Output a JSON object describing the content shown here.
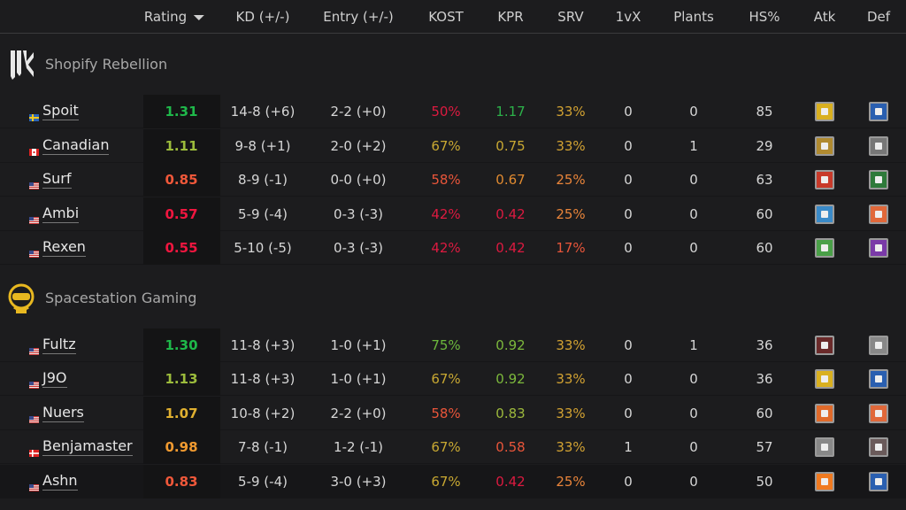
{
  "header": {
    "columns": [
      {
        "key": "rating",
        "label": "Rating",
        "sorted": "desc"
      },
      {
        "key": "kd",
        "label": "KD (+/-)"
      },
      {
        "key": "entry",
        "label": "Entry (+/-)"
      },
      {
        "key": "kost",
        "label": "KOST"
      },
      {
        "key": "kpr",
        "label": "KPR"
      },
      {
        "key": "srv",
        "label": "SRV"
      },
      {
        "key": "onevx",
        "label": "1vX"
      },
      {
        "key": "plants",
        "label": "Plants"
      },
      {
        "key": "hs",
        "label": "HS%"
      },
      {
        "key": "atk",
        "label": "Atk"
      },
      {
        "key": "def",
        "label": "Def"
      }
    ]
  },
  "teams": [
    {
      "name": "Shopify Rebellion",
      "logo": "shopify-rebellion-logo",
      "players": [
        {
          "flag": "sweden",
          "name": "Spoit",
          "rating": "1.31",
          "rc": "#1fb84a",
          "kd": "14-8 (+6)",
          "entry": "2-2 (+0)",
          "kost": "50%",
          "kc": "#dc1a40",
          "kpr": "1.17",
          "pc": "#2cb24a",
          "srv": "33%",
          "sc": "#d2a232",
          "onevx": "0",
          "plants": "0",
          "hs": "85",
          "atk": "#d9b020",
          "def": "#2a5fb0"
        },
        {
          "flag": "canada",
          "name": "Canadian",
          "rating": "1.11",
          "rc": "#9cbc3c",
          "kd": "9-8 (+1)",
          "entry": "2-0 (+2)",
          "kost": "67%",
          "kc": "#c8a832",
          "kpr": "0.75",
          "pc": "#c8a832",
          "srv": "33%",
          "sc": "#d2a232",
          "onevx": "0",
          "plants": "1",
          "hs": "29",
          "atk": "#b08a30",
          "def": "#777777"
        },
        {
          "flag": "usa",
          "name": "Surf",
          "rating": "0.85",
          "rc": "#f0583a",
          "kd": "8-9 (-1)",
          "entry": "0-0 (+0)",
          "kost": "58%",
          "kc": "#e8553a",
          "kpr": "0.67",
          "pc": "#e08a30",
          "srv": "25%",
          "sc": "#e8843a",
          "onevx": "0",
          "plants": "0",
          "hs": "63",
          "atk": "#c83a2a",
          "def": "#2e7a3a"
        },
        {
          "flag": "usa",
          "name": "Ambi",
          "rating": "0.57",
          "rc": "#f0163f",
          "kd": "5-9 (-4)",
          "entry": "0-3 (-3)",
          "kost": "42%",
          "kc": "#dc1a40",
          "kpr": "0.42",
          "pc": "#dc1a40",
          "srv": "25%",
          "sc": "#e8843a",
          "onevx": "0",
          "plants": "0",
          "hs": "60",
          "atk": "#3a8ac8",
          "def": "#e0683a"
        },
        {
          "flag": "usa",
          "name": "Rexen",
          "rating": "0.55",
          "rc": "#f0163f",
          "kd": "5-10 (-5)",
          "entry": "0-3 (-3)",
          "kost": "42%",
          "kc": "#dc1a40",
          "kpr": "0.42",
          "pc": "#dc1a40",
          "srv": "17%",
          "sc": "#e8553a",
          "onevx": "0",
          "plants": "0",
          "hs": "60",
          "atk": "#4aa048",
          "def": "#7a3aa8"
        }
      ]
    },
    {
      "name": "Spacestation Gaming",
      "logo": "spacestation-gaming-logo",
      "players": [
        {
          "flag": "usa",
          "name": "Fultz",
          "rating": "1.30",
          "rc": "#1fb84a",
          "kd": "11-8 (+3)",
          "entry": "1-0 (+1)",
          "kost": "75%",
          "kc": "#6cb83c",
          "kpr": "0.92",
          "pc": "#7cb83c",
          "srv": "33%",
          "sc": "#d2a232",
          "onevx": "0",
          "plants": "1",
          "hs": "36",
          "atk": "#6a2a2a",
          "def": "#888888"
        },
        {
          "flag": "usa",
          "name": "J9O",
          "rating": "1.13",
          "rc": "#9cbc3c",
          "kd": "11-8 (+3)",
          "entry": "1-0 (+1)",
          "kost": "67%",
          "kc": "#c8a832",
          "kpr": "0.92",
          "pc": "#7cb83c",
          "srv": "33%",
          "sc": "#d2a232",
          "onevx": "0",
          "plants": "0",
          "hs": "36",
          "atk": "#d9b020",
          "def": "#2a5fb0"
        },
        {
          "flag": "usa",
          "name": "Nuers",
          "rating": "1.07",
          "rc": "#e0b030",
          "kd": "10-8 (+2)",
          "entry": "2-2 (+0)",
          "kost": "58%",
          "kc": "#e8553a",
          "kpr": "0.83",
          "pc": "#9cb83c",
          "srv": "33%",
          "sc": "#d2a232",
          "onevx": "0",
          "plants": "0",
          "hs": "60",
          "atk": "#e06a2a",
          "def": "#e0683a"
        },
        {
          "flag": "denmark",
          "name": "Benjamaster",
          "rating": "0.98",
          "rc": "#f09a30",
          "kd": "7-8 (-1)",
          "entry": "1-2 (-1)",
          "kost": "67%",
          "kc": "#c8a832",
          "kpr": "0.58",
          "pc": "#e8553a",
          "srv": "33%",
          "sc": "#d2a232",
          "onevx": "1",
          "plants": "0",
          "hs": "57",
          "atk": "#888888",
          "def": "#6a5a5a"
        },
        {
          "flag": "usa",
          "name": "Ashn",
          "rating": "0.83",
          "rc": "#f0583a",
          "kd": "5-9 (-4)",
          "entry": "3-0 (+3)",
          "kost": "67%",
          "kc": "#c8a832",
          "kpr": "0.42",
          "pc": "#dc1a40",
          "srv": "25%",
          "sc": "#e8843a",
          "onevx": "0",
          "plants": "0",
          "hs": "50",
          "atk": "#f07a20",
          "def": "#2a5fb0"
        }
      ]
    }
  ]
}
